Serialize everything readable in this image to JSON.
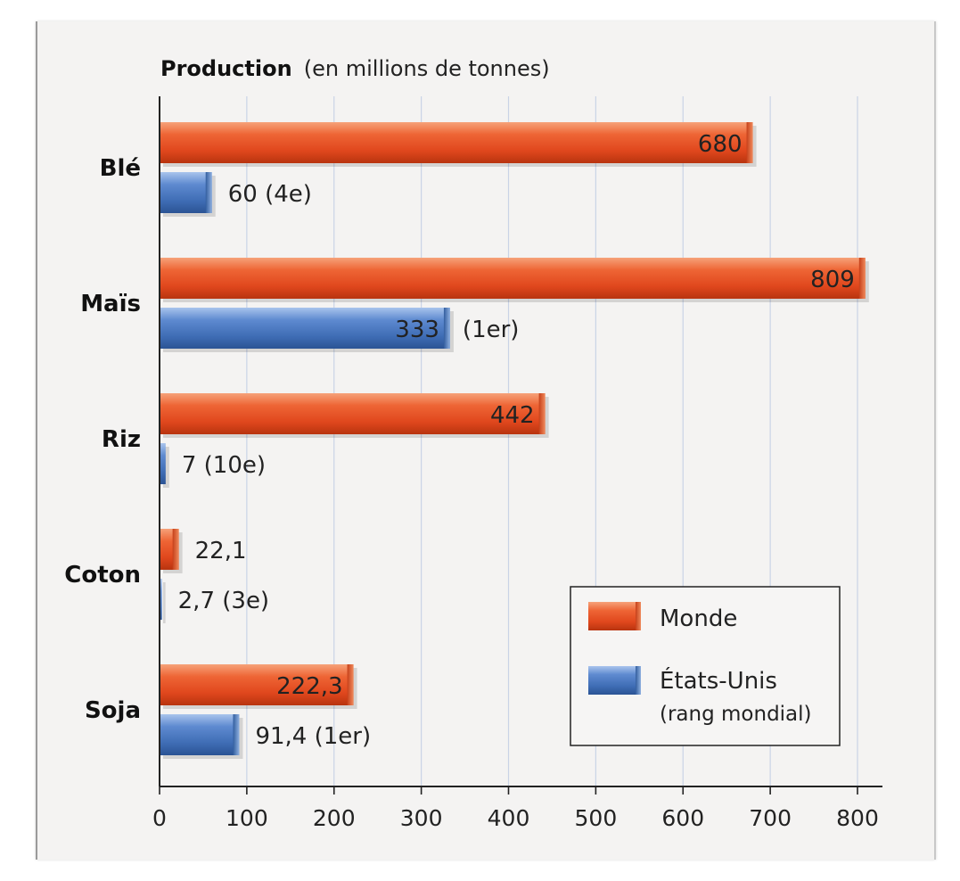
{
  "chart_data": {
    "type": "bar",
    "orientation": "horizontal",
    "title": "Production",
    "title_unit": "(en millions de tonnes)",
    "categories": [
      "Blé",
      "Maïs",
      "Riz",
      "Coton",
      "Soja"
    ],
    "series": [
      {
        "name": "Monde",
        "color": "#e8542a",
        "values": [
          680,
          809,
          442,
          22.1,
          222.3
        ],
        "labels": [
          "680",
          "809",
          "442",
          "22,1",
          "222,3"
        ],
        "ranks": [
          "",
          "",
          "",
          "",
          ""
        ]
      },
      {
        "name": "États-Unis",
        "color": "#4a78bd",
        "values": [
          60,
          333,
          7,
          2.7,
          91.4
        ],
        "labels": [
          "60",
          "333",
          "7",
          "2,7",
          "91,4"
        ],
        "ranks": [
          "(4e)",
          "(1er)",
          "(10e)",
          "(3e)",
          "(1er)"
        ]
      }
    ],
    "xlim": [
      0,
      800
    ],
    "xticks": [
      0,
      100,
      200,
      300,
      400,
      500,
      600,
      700,
      800
    ],
    "grid": true,
    "legend": {
      "placement": "bottom-right",
      "items": [
        {
          "label": "Monde",
          "color": "#e8542a"
        },
        {
          "label": "États-Unis",
          "sublabel": "(rang mondial)",
          "color": "#4a78bd"
        }
      ]
    }
  }
}
